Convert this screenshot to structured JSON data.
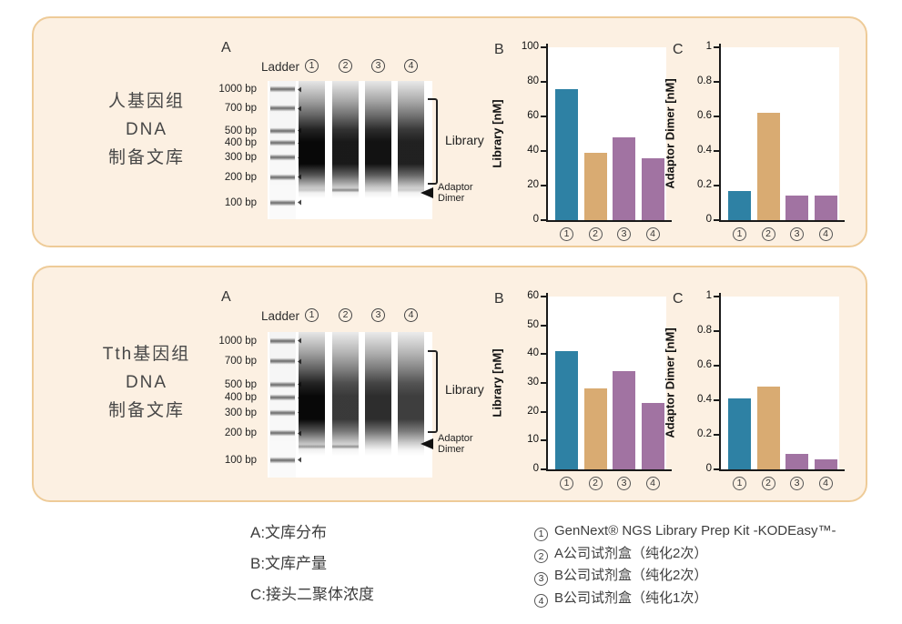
{
  "colors": {
    "teal": "#2e81a4",
    "tan": "#d9ab72",
    "purple": "#a173a2",
    "panel_bg": "#fcf0e2",
    "panel_border": "#eecb98"
  },
  "panels": [
    {
      "id": "human-genome",
      "title_lines": [
        "人基因组",
        "DNA",
        "制备文库"
      ],
      "gel": {
        "section_label": "A",
        "ladder_label": "Ladder",
        "lane_numbers": [
          "1",
          "2",
          "3",
          "4"
        ],
        "bp_labels": [
          "1000 bp",
          "700 bp",
          "500 bp",
          "400 bp",
          "300 bp",
          "200 bp",
          "100 bp"
        ],
        "library_label": "Library",
        "adaptor_line1": "Adaptor",
        "adaptor_line2": "Dimer",
        "lane_opacities": [
          1,
          0.93,
          0.96,
          0.9
        ],
        "dimer_opacities": [
          0.12,
          0.55,
          0.06,
          0.12
        ]
      }
    },
    {
      "id": "tth-genome",
      "title_lines": [
        "Tth基因组",
        "DNA",
        "制备文库"
      ],
      "gel": {
        "section_label": "A",
        "ladder_label": "Ladder",
        "lane_numbers": [
          "1",
          "2",
          "3",
          "4"
        ],
        "bp_labels": [
          "1000 bp",
          "700 bp",
          "500 bp",
          "400 bp",
          "300 bp",
          "200 bp",
          "100 bp"
        ],
        "library_label": "Library",
        "adaptor_line1": "Adaptor",
        "adaptor_line2": "Dimer",
        "lane_opacities": [
          1,
          0.8,
          0.85,
          0.78
        ],
        "dimer_opacities": [
          0.42,
          0.5,
          0,
          0
        ]
      }
    }
  ],
  "chart_data": [
    {
      "type": "bar",
      "panel": "human-genome",
      "section_label": "B",
      "ylabel": "Library [nM]",
      "xlabel": "",
      "ylim": [
        0,
        100
      ],
      "ytick_labels": [
        "0",
        "20",
        "40",
        "60",
        "80",
        "100"
      ],
      "categories": [
        "1",
        "2",
        "3",
        "4"
      ],
      "values": [
        76,
        39,
        48,
        36
      ],
      "bar_colors": [
        "teal",
        "tan",
        "purple",
        "purple"
      ],
      "grid": false,
      "legend_position": "none"
    },
    {
      "type": "bar",
      "panel": "human-genome",
      "section_label": "C",
      "ylabel": "Adaptor Dimer [nM]",
      "xlabel": "",
      "ylim": [
        0,
        1
      ],
      "ytick_labels": [
        "0",
        "0.2",
        "0.4",
        "0.6",
        "0.8",
        "1"
      ],
      "categories": [
        "1",
        "2",
        "3",
        "4"
      ],
      "values": [
        0.17,
        0.62,
        0.14,
        0.14
      ],
      "bar_colors": [
        "teal",
        "tan",
        "purple",
        "purple"
      ],
      "grid": false,
      "legend_position": "none"
    },
    {
      "type": "bar",
      "panel": "tth-genome",
      "section_label": "B",
      "ylabel": "Library [nM]",
      "xlabel": "",
      "ylim": [
        0,
        60
      ],
      "ytick_labels": [
        "0",
        "10",
        "20",
        "30",
        "40",
        "50",
        "60"
      ],
      "categories": [
        "1",
        "2",
        "3",
        "4"
      ],
      "values": [
        41,
        28,
        34,
        23
      ],
      "bar_colors": [
        "teal",
        "tan",
        "purple",
        "purple"
      ],
      "grid": false,
      "legend_position": "none"
    },
    {
      "type": "bar",
      "panel": "tth-genome",
      "section_label": "C",
      "ylabel": "Adaptor Dimer [nM]",
      "xlabel": "",
      "ylim": [
        0,
        1
      ],
      "ytick_labels": [
        "0",
        "0.2",
        "0.4",
        "0.6",
        "0.8",
        "1"
      ],
      "categories": [
        "1",
        "2",
        "3",
        "4"
      ],
      "values": [
        0.41,
        0.48,
        0.09,
        0.06
      ],
      "bar_colors": [
        "teal",
        "tan",
        "purple",
        "purple"
      ],
      "grid": false,
      "legend_position": "none"
    }
  ],
  "legend": {
    "left_items": [
      "A:文库分布",
      "B:文库产量",
      "C:接头二聚体浓度"
    ],
    "right_items": [
      {
        "num": "1",
        "text": "GenNext® NGS Library Prep Kit -KODEasy™-"
      },
      {
        "num": "2",
        "text": "A公司试剂盒（纯化2次）"
      },
      {
        "num": "3",
        "text": "B公司试剂盒（纯化2次）"
      },
      {
        "num": "4",
        "text": "B公司试剂盒（纯化1次）"
      }
    ]
  }
}
